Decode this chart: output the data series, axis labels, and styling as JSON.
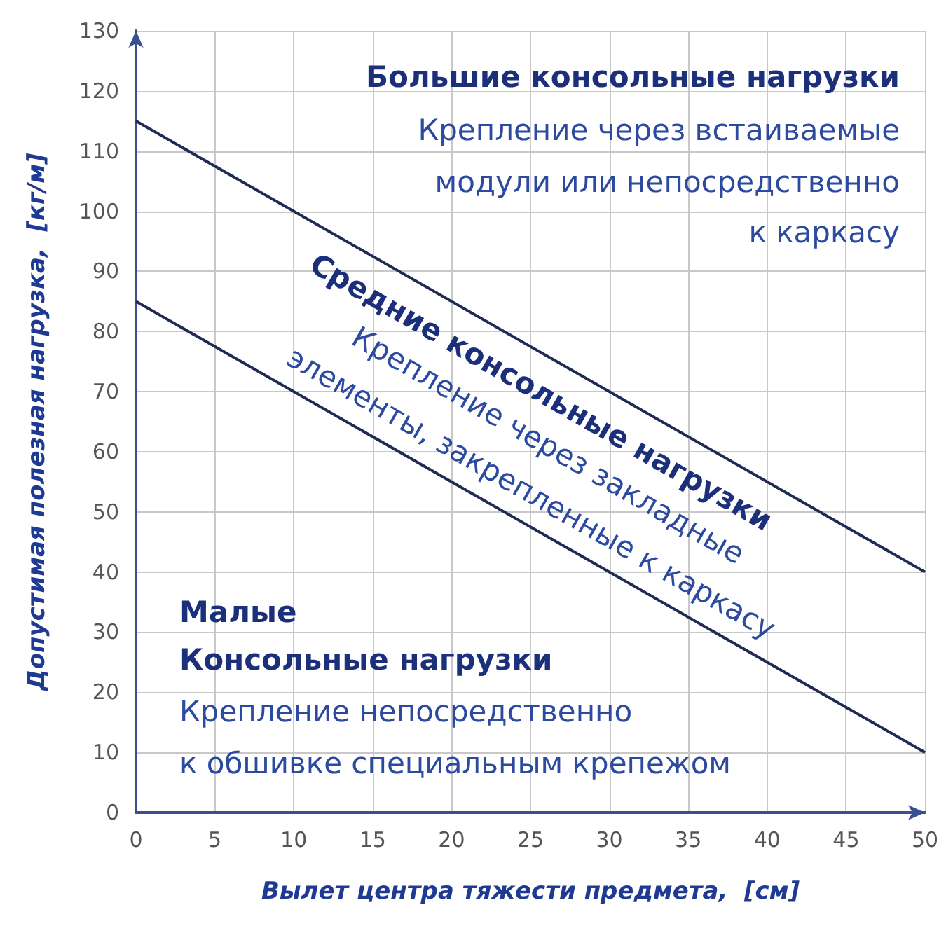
{
  "chart_data": {
    "type": "line",
    "xlabel": "Вылет центра тяжести предмета,  [см]",
    "ylabel": "Допустимая полезная нагрузка,  [кг/м]",
    "series": [
      {
        "color": "#1f2a55",
        "values": [
          115,
          40
        ]
      },
      {
        "color": "#1f2a55",
        "values": [
          85,
          10
        ]
      }
    ],
    "x": [
      0,
      50
    ],
    "xlim": [
      0,
      50
    ],
    "xticks": [
      0,
      5,
      10,
      15,
      20,
      25,
      30,
      35,
      40,
      45,
      50
    ],
    "ylim": [
      0,
      130
    ],
    "yticks": [
      0,
      10,
      20,
      30,
      40,
      50,
      60,
      70,
      80,
      90,
      100,
      110,
      120,
      130
    ],
    "grid": true,
    "marker": "none",
    "line_style": "solid",
    "annotations": [
      "Большие консольные нагрузки",
      "Крепление через встаиваемые",
      "модули или непосредственно",
      "к каркасу",
      "Средние консольные нагрузки",
      "Крепление через закладные",
      "элементы, закрепленные к каркасу",
      "Малые",
      "Консольные нагрузки",
      "Крепление непосредственно",
      "к обшивке специальным крепежом"
    ]
  }
}
